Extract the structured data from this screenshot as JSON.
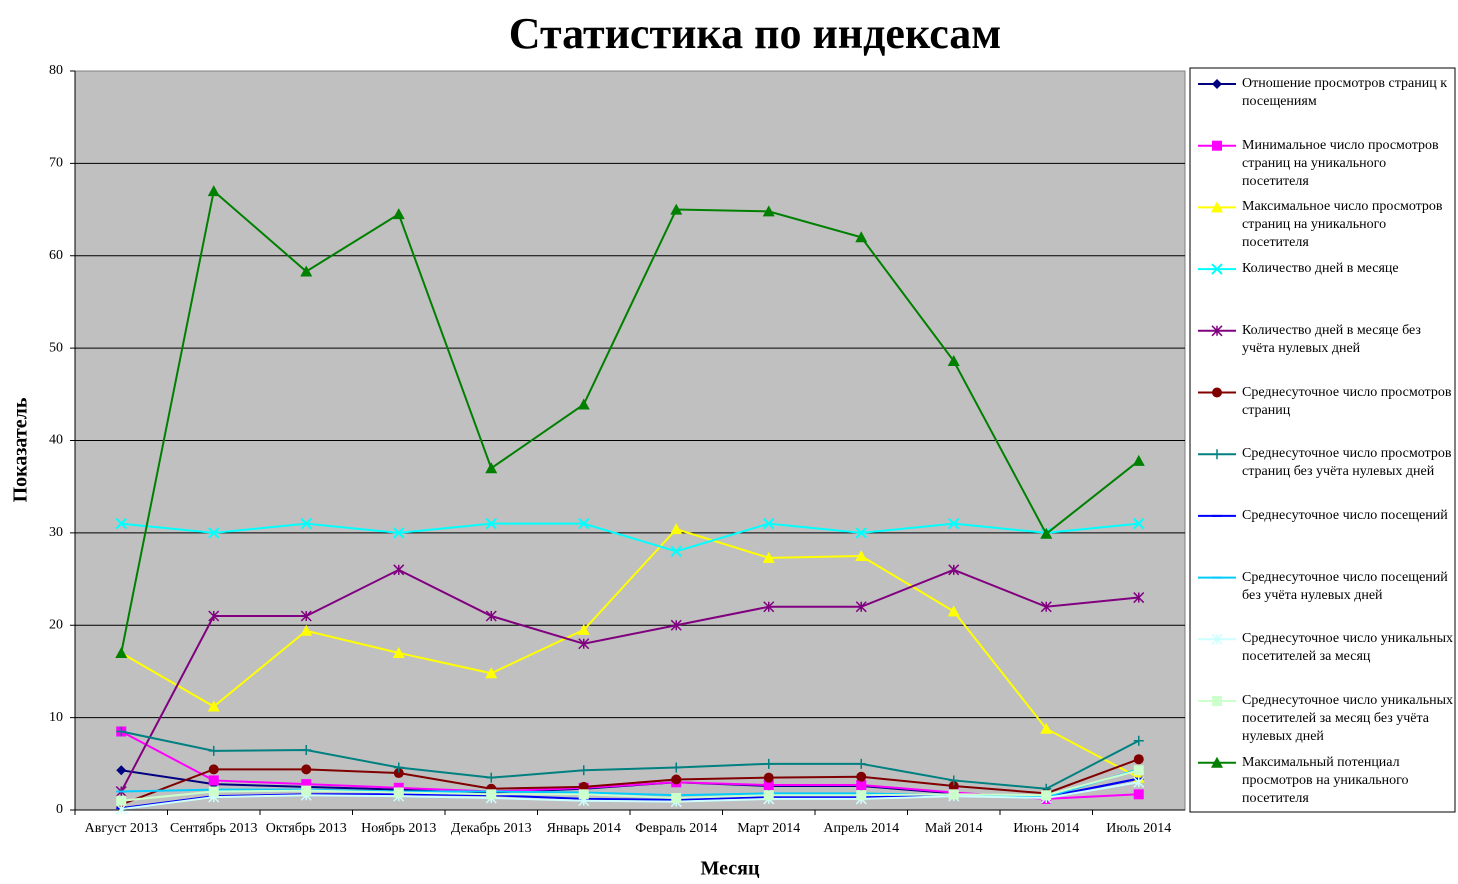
{
  "chart_data": {
    "type": "line",
    "title": "Статистика по индексам",
    "x_label": "Месяц",
    "y_label": "Показатель",
    "categories": [
      "Август 2013",
      "Сентябрь 2013",
      "Октябрь 2013",
      "Ноябрь 2013",
      "Декабрь 2013",
      "Январь 2014",
      "Февраль 2014",
      "Март 2014",
      "Апрель 2014",
      "Май 2014",
      "Июнь 2014",
      "Июль 2014"
    ],
    "ylim": [
      0,
      80
    ],
    "yticks": [
      0,
      10,
      20,
      30,
      40,
      50,
      60,
      70,
      80
    ],
    "grid": true,
    "legend": "right",
    "series": [
      {
        "name": "Отношение просмотров страниц к посещениям",
        "color": "#000080",
        "marker": "diamond",
        "values": [
          4.3,
          2.8,
          2.5,
          2.2,
          1.9,
          2.3,
          3.0,
          2.6,
          2.6,
          1.8,
          1.4,
          3.4
        ]
      },
      {
        "name": "Минимальное число просмотров страниц на уникального посетителя",
        "color": "#ff00ff",
        "marker": "square",
        "values": [
          8.5,
          3.2,
          2.8,
          2.4,
          2.0,
          2.4,
          3.0,
          2.7,
          2.7,
          1.9,
          1.2,
          1.7
        ]
      },
      {
        "name": "Максимальное число просмотров страниц на уникального посетителя",
        "color": "#ffff00",
        "marker": "triangle",
        "values": [
          17,
          11.2,
          19.4,
          17,
          14.8,
          19.5,
          30.4,
          27.3,
          27.5,
          21.5,
          8.8,
          3.5
        ]
      },
      {
        "name": "Количество дней в месяце",
        "color": "#00ffff",
        "marker": "x",
        "values": [
          31,
          30,
          31,
          30,
          31,
          31,
          28,
          31,
          30,
          31,
          30,
          31
        ]
      },
      {
        "name": "Количество дней в месяце без учёта нулевых дней",
        "color": "#800080",
        "marker": "star",
        "values": [
          2,
          21,
          21,
          26,
          21,
          18,
          20,
          22,
          22,
          26,
          22,
          23
        ]
      },
      {
        "name": "Среднесуточное число просмотров страниц",
        "color": "#800000",
        "marker": "circle",
        "values": [
          0.6,
          4.4,
          4.4,
          4.0,
          2.3,
          2.5,
          3.3,
          3.5,
          3.6,
          2.6,
          1.8,
          5.5
        ]
      },
      {
        "name": "Среднесуточное число просмотров страниц без учёта нулевых дней",
        "color": "#008080",
        "marker": "plus",
        "values": [
          8.5,
          6.4,
          6.5,
          4.6,
          3.5,
          4.3,
          4.6,
          5.0,
          5.0,
          3.2,
          2.3,
          7.5
        ]
      },
      {
        "name": "Среднесуточное число посещений",
        "color": "#0000ff",
        "marker": "dash",
        "values": [
          0.2,
          1.5,
          1.7,
          1.7,
          1.6,
          1.2,
          1.1,
          1.4,
          1.4,
          1.6,
          1.4,
          3.4
        ]
      },
      {
        "name": "Среднесуточное число посещений без учёта нулевых дней",
        "color": "#00ccff",
        "marker": "dash",
        "values": [
          2.0,
          2.2,
          2.2,
          2.0,
          2.0,
          1.9,
          1.6,
          1.8,
          1.8,
          1.6,
          1.4,
          4.4
        ]
      },
      {
        "name": "Среднесуточное число уникальных посетителей за месяц",
        "color": "#ccffff",
        "marker": "star",
        "values": [
          0.1,
          1.4,
          1.6,
          1.5,
          1.3,
          1.0,
          0.9,
          1.2,
          1.2,
          1.5,
          1.3,
          3.0
        ]
      },
      {
        "name": "Среднесуточное число уникальных посетителей за месяц без учёта нулевых дней",
        "color": "#ccffcc",
        "marker": "square",
        "values": [
          1.0,
          2.0,
          2.1,
          1.9,
          1.7,
          1.7,
          1.3,
          1.6,
          1.6,
          1.7,
          1.6,
          4.3
        ]
      },
      {
        "name": "Максимальный потенциал просмотров на уникального посетителя",
        "color": "#008000",
        "marker": "triangle",
        "values": [
          17,
          67,
          58.3,
          64.5,
          37,
          43.9,
          65,
          64.8,
          62,
          48.6,
          29.9,
          37.8
        ]
      }
    ]
  }
}
